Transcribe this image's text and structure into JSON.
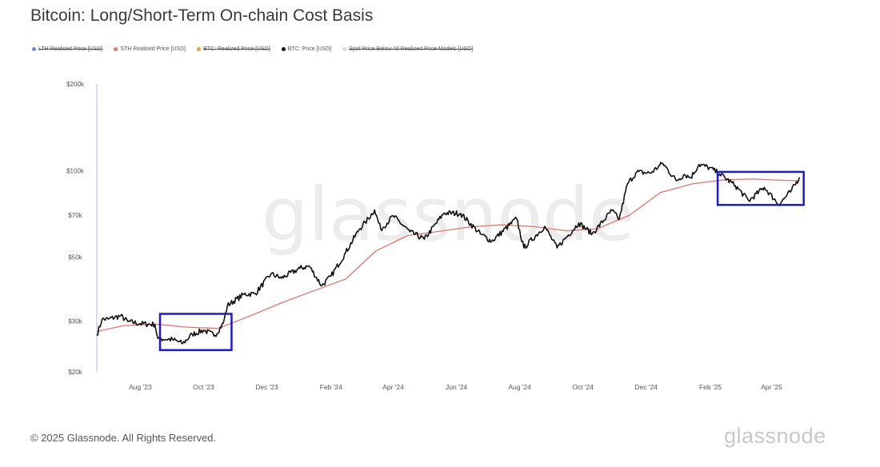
{
  "title": "Bitcoin: Long/Short-Term On-chain Cost Basis",
  "legend": [
    {
      "label": "LTH Realised Price [USD]",
      "color": "#6a8fd6",
      "disabled": true
    },
    {
      "label": "STH Realised Price [USD]",
      "color": "#e8746a",
      "disabled": false
    },
    {
      "label": "BTC: Realized Price [USD]",
      "color": "#f0a03c",
      "disabled": true
    },
    {
      "label": "BTC: Price [USD]",
      "color": "#111111",
      "disabled": false
    },
    {
      "label": "Spot Price Below All Realized Price Models [USD]",
      "color": "#dddddd",
      "disabled": true
    }
  ],
  "footer": "© 2025 Glassnode. All Rights Reserved.",
  "brand": "glassnode",
  "watermark": "glassnode",
  "colors": {
    "sth": "#e8746a",
    "price": "#111111",
    "box": "#1a1adf",
    "axis": "#b7b7e8"
  },
  "chart_data": {
    "type": "line",
    "title": "Bitcoin: Long/Short-Term On-chain Cost Basis",
    "y_scale": "log",
    "ylim": [
      20000,
      200000
    ],
    "y_ticks": [
      {
        "value": 20000,
        "label": "$20k"
      },
      {
        "value": 30000,
        "label": "$30k"
      },
      {
        "value": 50000,
        "label": "$50k"
      },
      {
        "value": 70000,
        "label": "$70k"
      },
      {
        "value": 100000,
        "label": "$100k"
      },
      {
        "value": 200000,
        "label": "$200k"
      }
    ],
    "xlim": [
      "2023-06-20",
      "2025-05-10"
    ],
    "x_ticks": [
      {
        "date": "2023-08-01",
        "label": "Aug '23"
      },
      {
        "date": "2023-10-01",
        "label": "Oct '23"
      },
      {
        "date": "2023-12-01",
        "label": "Dec '23"
      },
      {
        "date": "2024-02-01",
        "label": "Feb '24"
      },
      {
        "date": "2024-04-01",
        "label": "Apr '24"
      },
      {
        "date": "2024-06-01",
        "label": "Jun '24"
      },
      {
        "date": "2024-08-01",
        "label": "Aug '24"
      },
      {
        "date": "2024-10-01",
        "label": "Oct '24"
      },
      {
        "date": "2024-12-01",
        "label": "Dec '24"
      },
      {
        "date": "2025-02-01",
        "label": "Feb '25"
      },
      {
        "date": "2025-04-01",
        "label": "Apr '25"
      }
    ],
    "series": [
      {
        "name": "BTC: Price [USD]",
        "color": "#111111",
        "points": [
          [
            "2023-06-20",
            26800
          ],
          [
            "2023-06-25",
            30400
          ],
          [
            "2023-07-01",
            30500
          ],
          [
            "2023-07-13",
            31300
          ],
          [
            "2023-07-20",
            29900
          ],
          [
            "2023-08-01",
            29400
          ],
          [
            "2023-08-15",
            29200
          ],
          [
            "2023-08-18",
            26100
          ],
          [
            "2023-09-01",
            25900
          ],
          [
            "2023-09-11",
            25100
          ],
          [
            "2023-09-20",
            27000
          ],
          [
            "2023-10-01",
            27900
          ],
          [
            "2023-10-12",
            26800
          ],
          [
            "2023-10-20",
            29500
          ],
          [
            "2023-10-24",
            34000
          ],
          [
            "2023-11-09",
            37200
          ],
          [
            "2023-11-20",
            37400
          ],
          [
            "2023-12-05",
            43800
          ],
          [
            "2023-12-15",
            42300
          ],
          [
            "2024-01-02",
            45800
          ],
          [
            "2024-01-11",
            46600
          ],
          [
            "2024-01-23",
            39800
          ],
          [
            "2024-02-01",
            43000
          ],
          [
            "2024-02-15",
            51800
          ],
          [
            "2024-02-28",
            62500
          ],
          [
            "2024-03-05",
            66000
          ],
          [
            "2024-03-14",
            73000
          ],
          [
            "2024-03-20",
            62500
          ],
          [
            "2024-04-01",
            69600
          ],
          [
            "2024-04-17",
            61300
          ],
          [
            "2024-05-01",
            57800
          ],
          [
            "2024-05-20",
            71300
          ],
          [
            "2024-06-05",
            71000
          ],
          [
            "2024-06-24",
            60300
          ],
          [
            "2024-07-05",
            56800
          ],
          [
            "2024-07-29",
            68200
          ],
          [
            "2024-08-05",
            53900
          ],
          [
            "2024-08-25",
            64000
          ],
          [
            "2024-09-06",
            53900
          ],
          [
            "2024-09-27",
            65800
          ],
          [
            "2024-10-10",
            60300
          ],
          [
            "2024-10-29",
            72700
          ],
          [
            "2024-11-05",
            67800
          ],
          [
            "2024-11-13",
            90000
          ],
          [
            "2024-11-22",
            98900
          ],
          [
            "2024-12-05",
            98000
          ],
          [
            "2024-12-17",
            106100
          ],
          [
            "2024-12-30",
            92300
          ],
          [
            "2025-01-07",
            97000
          ],
          [
            "2025-01-13",
            94500
          ],
          [
            "2025-01-21",
            105000
          ],
          [
            "2025-01-31",
            102400
          ],
          [
            "2025-02-10",
            97400
          ],
          [
            "2025-02-25",
            88700
          ],
          [
            "2025-03-10",
            78600
          ],
          [
            "2025-03-25",
            87500
          ],
          [
            "2025-04-08",
            76300
          ],
          [
            "2025-04-20",
            85100
          ],
          [
            "2025-04-28",
            94800
          ]
        ]
      },
      {
        "name": "STH Realised Price [USD]",
        "color": "#e8746a",
        "points": [
          [
            "2023-06-20",
            27600
          ],
          [
            "2023-07-15",
            28900
          ],
          [
            "2023-08-15",
            29300
          ],
          [
            "2023-09-15",
            28600
          ],
          [
            "2023-10-15",
            28300
          ],
          [
            "2023-11-15",
            31300
          ],
          [
            "2023-12-15",
            34700
          ],
          [
            "2024-01-15",
            38200
          ],
          [
            "2024-02-15",
            42000
          ],
          [
            "2024-03-15",
            52500
          ],
          [
            "2024-04-15",
            59500
          ],
          [
            "2024-05-15",
            61500
          ],
          [
            "2024-06-15",
            63800
          ],
          [
            "2024-07-15",
            64800
          ],
          [
            "2024-08-15",
            63900
          ],
          [
            "2024-09-15",
            61800
          ],
          [
            "2024-10-15",
            62800
          ],
          [
            "2024-11-15",
            70000
          ],
          [
            "2024-12-15",
            84000
          ],
          [
            "2025-01-15",
            90000
          ],
          [
            "2025-02-15",
            93000
          ],
          [
            "2025-03-15",
            93500
          ],
          [
            "2025-04-15",
            92500
          ],
          [
            "2025-04-28",
            92300
          ]
        ]
      }
    ],
    "annotations": [
      {
        "type": "box",
        "x_from": "2023-08-20",
        "x_to": "2023-10-28",
        "y_from": 23800,
        "y_to": 31800
      },
      {
        "type": "box",
        "x_from": "2025-02-08",
        "x_to": "2025-05-02",
        "y_from": 76000,
        "y_to": 99000
      }
    ]
  }
}
